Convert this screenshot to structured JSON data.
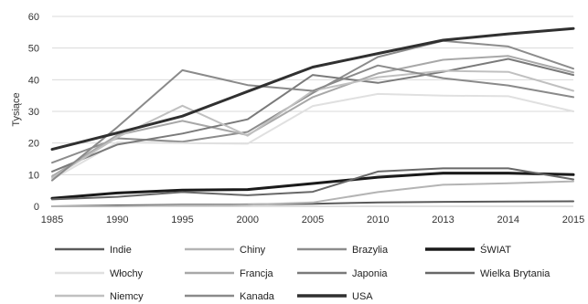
{
  "chart_data": {
    "type": "line",
    "title": "",
    "xlabel": "",
    "ylabel": "Tysiące",
    "ylim": [
      0,
      60
    ],
    "yticks": [
      0,
      10,
      20,
      30,
      40,
      50,
      60
    ],
    "grid": "horizontal",
    "legend_position": "bottom",
    "categories": [
      "1985",
      "1990",
      "1995",
      "2000",
      "2005",
      "2010",
      "2013",
      "2014",
      "2015"
    ],
    "series": [
      {
        "name": "Indie",
        "color": "#5a5a5a",
        "width": 2,
        "values": [
          0,
          0.3,
          0.5,
          0.6,
          0.8,
          1.2,
          1.4,
          1.5,
          1.6
        ]
      },
      {
        "name": "Chiny",
        "color": "#b4b4b4",
        "width": 2,
        "values": [
          0,
          0,
          0.3,
          0.5,
          1.2,
          4.5,
          6.8,
          7.3,
          7.9
        ]
      },
      {
        "name": "Brazylia",
        "color": "#8c8c8c",
        "width": 2,
        "values": [
          13.8,
          21.5,
          20.4,
          23.5,
          35.8,
          47.2,
          52.3,
          50.5,
          43.5
        ]
      },
      {
        "name": "ŚWIAT",
        "color": "#1a1a1a",
        "width": 3,
        "values": [
          2.5,
          4.2,
          5.1,
          5.3,
          7.2,
          9.2,
          10.5,
          10.5,
          10
        ]
      },
      {
        "name": "Włochy",
        "color": "#e0e0e0",
        "width": 2,
        "values": [
          8.5,
          20.2,
          20,
          19.8,
          31.7,
          35.5,
          35,
          34.8,
          30
        ]
      },
      {
        "name": "Francja",
        "color": "#a8a8a8",
        "width": 2,
        "values": [
          9.5,
          22.5,
          27,
          22.5,
          34.5,
          42,
          46.3,
          47.5,
          42.3
        ]
      },
      {
        "name": "Japonia",
        "color": "#7a7a7a",
        "width": 2,
        "values": [
          11,
          19.5,
          23,
          27.5,
          41.5,
          39,
          42.5,
          46.6,
          41.5
        ]
      },
      {
        "name": "Wielka Brytania",
        "color": "#686868",
        "width": 2,
        "values": [
          2.2,
          3,
          4.5,
          3.5,
          4.6,
          11,
          12,
          12,
          8.5
        ]
      },
      {
        "name": "Niemcy",
        "color": "#c0c0c0",
        "width": 2,
        "values": [
          9,
          21.8,
          31.8,
          22.3,
          36.5,
          40.8,
          42.8,
          42.5,
          36.5
        ]
      },
      {
        "name": "Kanada",
        "color": "#8a8a8a",
        "width": 2,
        "values": [
          8.2,
          25,
          43,
          38.3,
          36.5,
          44.5,
          40.5,
          38.2,
          34.5
        ]
      },
      {
        "name": "USA",
        "color": "#303030",
        "width": 3,
        "values": [
          18,
          23.2,
          28.5,
          36.3,
          44,
          48.3,
          52.5,
          54.5,
          56.2
        ]
      }
    ]
  }
}
